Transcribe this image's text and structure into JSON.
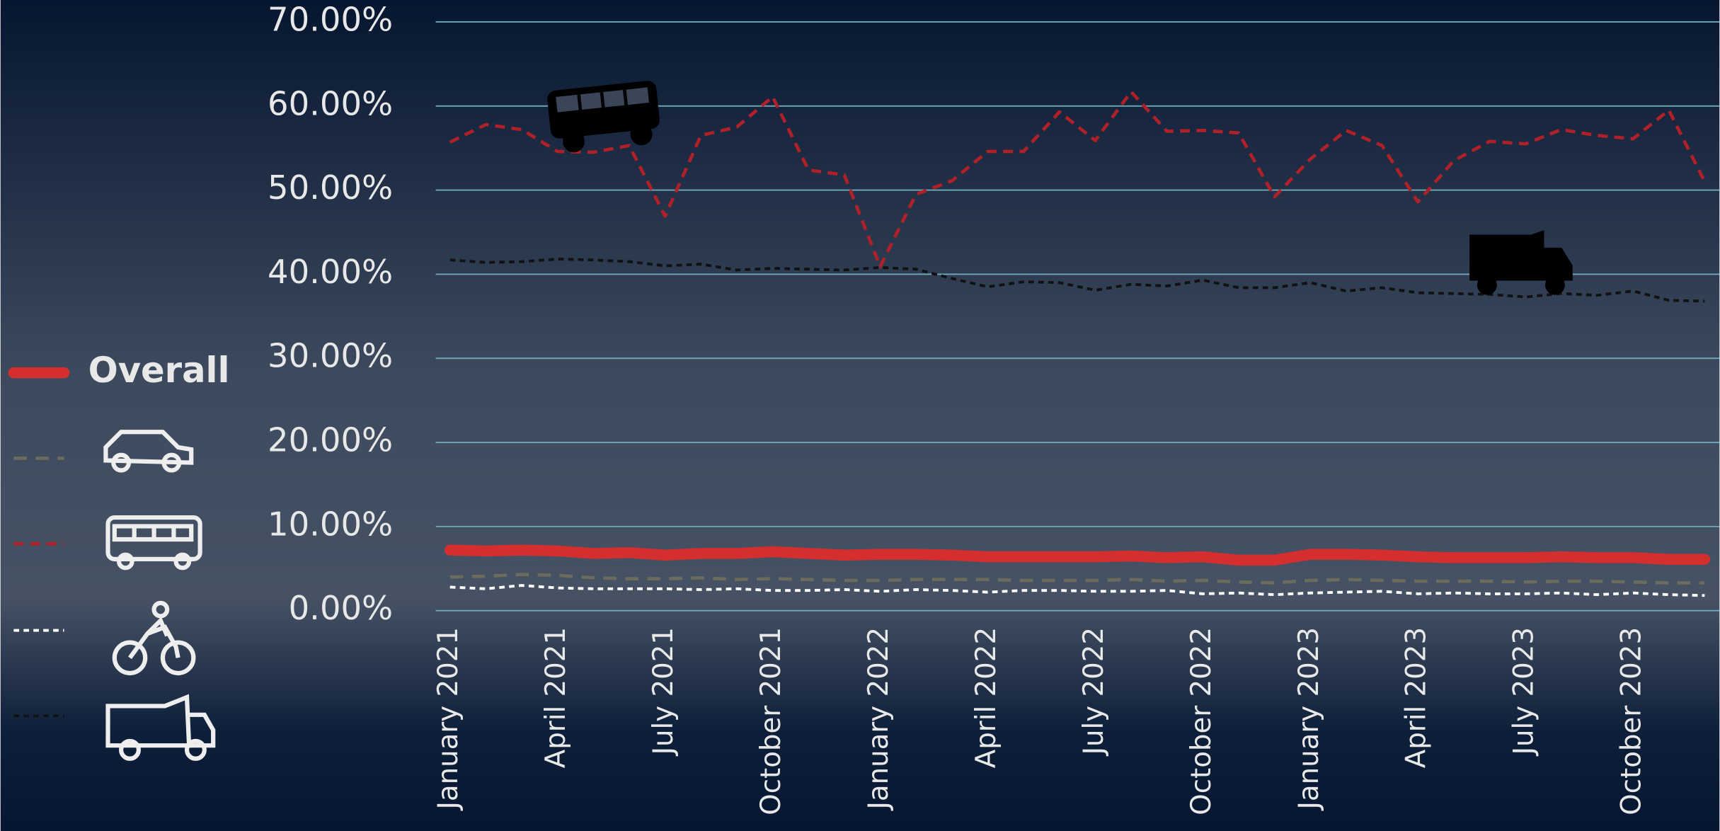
{
  "chart_data": {
    "type": "line",
    "categories": [
      "January 2021",
      null,
      null,
      "April 2021",
      null,
      null,
      "July 2021",
      null,
      null,
      "October 2021",
      null,
      null,
      "January 2022",
      null,
      null,
      "April 2022",
      null,
      null,
      "July 2022",
      null,
      null,
      "October 2022",
      null,
      null,
      "January 2023",
      null,
      null,
      "April 2023",
      null,
      null,
      "July 2023",
      null,
      null,
      "October 2023",
      null,
      null
    ],
    "series": [
      {
        "name": "Overall",
        "color": "#d42e2e",
        "values": [
          7.2,
          7.1,
          7.2,
          7.1,
          6.8,
          6.9,
          6.6,
          6.8,
          6.8,
          7.0,
          6.8,
          6.6,
          6.7,
          6.7,
          6.6,
          6.4,
          6.4,
          6.4,
          6.4,
          6.5,
          6.3,
          6.4,
          6.0,
          6.0,
          6.7,
          6.7,
          6.6,
          6.4,
          6.3,
          6.3,
          6.3,
          6.4,
          6.3,
          6.3,
          6.1,
          6.1
        ]
      },
      {
        "color": "#6b6b5e",
        "values": [
          4.0,
          4.1,
          4.3,
          4.2,
          3.9,
          3.8,
          3.8,
          3.9,
          3.7,
          3.8,
          3.7,
          3.6,
          3.6,
          3.7,
          3.7,
          3.7,
          3.6,
          3.6,
          3.6,
          3.7,
          3.5,
          3.6,
          3.4,
          3.3,
          3.6,
          3.7,
          3.6,
          3.5,
          3.5,
          3.5,
          3.4,
          3.5,
          3.5,
          3.4,
          3.3,
          3.3
        ]
      },
      {
        "color": "#b02028",
        "values": [
          55.7,
          57.8,
          57.2,
          54.6,
          54.5,
          55.3,
          46.9,
          56.5,
          57.5,
          61.1,
          52.4,
          51.8,
          40.9,
          49.5,
          51.1,
          54.6,
          54.6,
          59.3,
          55.9,
          61.7,
          57.0,
          57.1,
          56.8,
          49.2,
          53.7,
          57.1,
          55.3,
          48.6,
          53.5,
          55.8,
          55.5,
          57.2,
          56.5,
          56.1,
          59.5,
          51.0
        ]
      },
      {
        "color": "#ffffff",
        "values": [
          2.8,
          2.6,
          3.0,
          2.7,
          2.6,
          2.6,
          2.6,
          2.5,
          2.6,
          2.4,
          2.4,
          2.5,
          2.3,
          2.5,
          2.4,
          2.2,
          2.4,
          2.4,
          2.3,
          2.3,
          2.4,
          2.0,
          2.1,
          1.9,
          2.1,
          2.2,
          2.3,
          2.0,
          2.1,
          2.0,
          2.0,
          2.1,
          1.9,
          2.1,
          1.9,
          1.8
        ]
      },
      {
        "color": "#111111",
        "values": [
          41.7,
          41.4,
          41.5,
          41.8,
          41.7,
          41.5,
          41.0,
          41.2,
          40.5,
          40.7,
          40.6,
          40.5,
          40.8,
          40.6,
          39.5,
          38.5,
          39.1,
          39.0,
          38.1,
          38.8,
          38.6,
          39.3,
          38.4,
          38.4,
          39.0,
          38.0,
          38.4,
          37.8,
          37.7,
          37.6,
          37.3,
          37.7,
          37.5,
          38.0,
          36.9,
          36.8
        ]
      }
    ],
    "ylim": [
      0,
      70
    ],
    "yticks": [
      {
        "value": 0,
        "label": "0.00%"
      },
      {
        "value": 10,
        "label": "10.00%"
      },
      {
        "value": 20,
        "label": "20.00%"
      },
      {
        "value": 30,
        "label": "30.00%"
      },
      {
        "value": 40,
        "label": "40.00%"
      },
      {
        "value": 50,
        "label": "50.00%"
      },
      {
        "value": 60,
        "label": "60.00%"
      },
      {
        "value": 70,
        "label": "70.00%"
      }
    ],
    "grid": true
  }
}
